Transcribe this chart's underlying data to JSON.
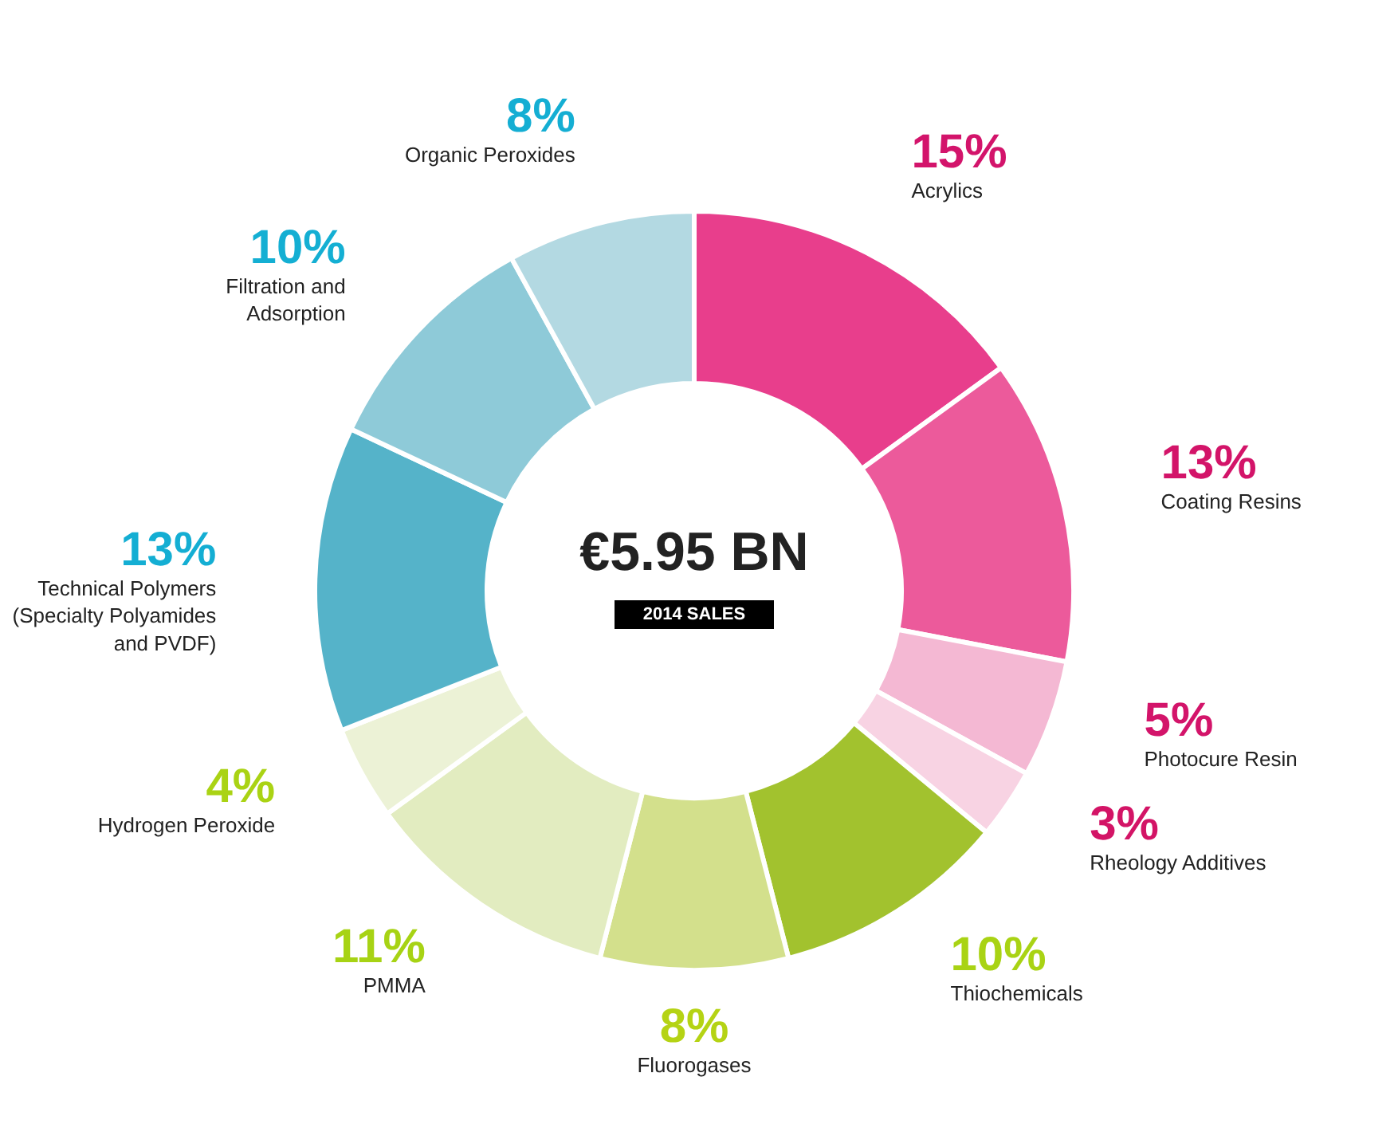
{
  "chart_data": {
    "type": "donut",
    "title": "€5.95 BN",
    "subtitle": "2014 SALES",
    "categories": [
      "Acrylics",
      "Coating Resins",
      "Photocure Resin",
      "Rheology Additives",
      "Thiochemicals",
      "Fluorogases",
      "PMMA",
      "Hydrogen Peroxide",
      "Technical Polymers (Specialty Polyamides and PVDF)",
      "Filtration and Adsorption",
      "Organic Peroxides"
    ],
    "values": [
      15,
      13,
      5,
      3,
      10,
      8,
      11,
      4,
      13,
      10,
      8
    ],
    "colors": [
      "#e83e8c",
      "#ec5a9b",
      "#f4b8d3",
      "#f8d3e3",
      "#a2c22e",
      "#d3e08c",
      "#e2ecc0",
      "#ecf2d6",
      "#55b3c9",
      "#8ecad8",
      "#b3d9e2"
    ],
    "value_labels": [
      "15%",
      "13%",
      "5%",
      "3%",
      "10%",
      "8%",
      "11%",
      "4%",
      "13%",
      "10%",
      "8%"
    ]
  }
}
